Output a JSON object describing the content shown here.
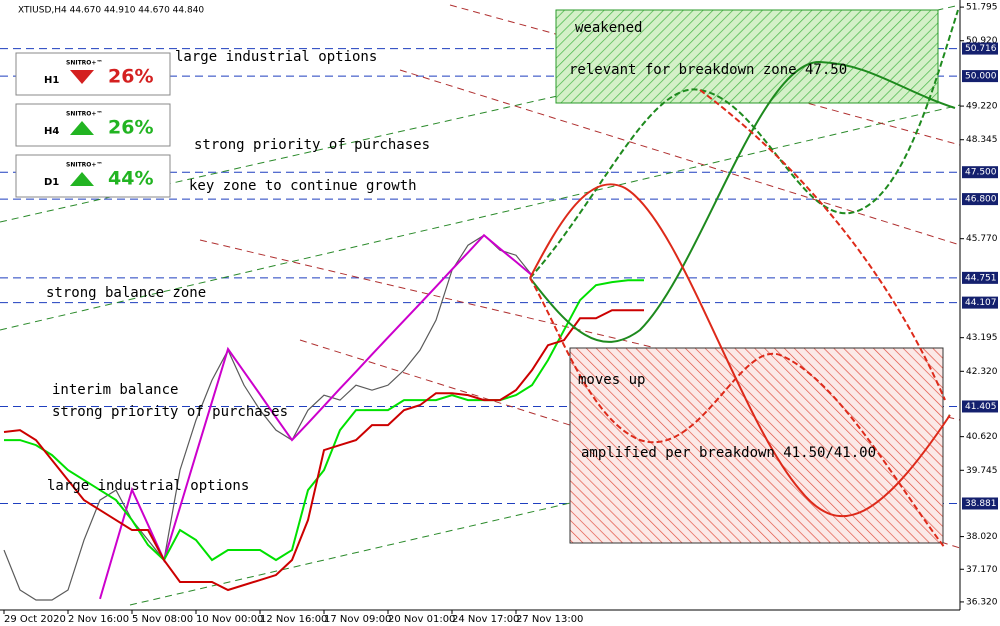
{
  "chart_data": {
    "type": "line",
    "title": "XTIUSD,H4  44.670 44.910 44.670 44.840",
    "categories": [
      "29 Oct 2020",
      null,
      null,
      null,
      "2 Nov 16:00",
      null,
      null,
      null,
      "5 Nov 08:00",
      null,
      null,
      null,
      "10 Nov 00:00",
      null,
      null,
      null,
      "12 Nov 16:00",
      null,
      null,
      null,
      "17 Nov 09:00",
      null,
      null,
      null,
      "20 Nov 01:00",
      null,
      null,
      null,
      "24 Nov 17:00",
      null,
      null,
      null,
      "27 Nov 13:00",
      null,
      null,
      null,
      null,
      null,
      null,
      null,
      null
    ],
    "series": [
      {
        "color": "#5a5a5a",
        "values": [
          37.67,
          36.63,
          36.37,
          36.37,
          36.63,
          37.93,
          38.97,
          39.23,
          38.45,
          37.93,
          37.41,
          39.75,
          41.05,
          42.09,
          42.87,
          41.96,
          41.31,
          40.79,
          40.53,
          41.31,
          41.7,
          41.57,
          41.96,
          41.83,
          41.96,
          42.35,
          42.87,
          43.65,
          44.95,
          45.6,
          45.86,
          45.47,
          45.34,
          44.82,
          null,
          null,
          null,
          null,
          null,
          null,
          null
        ]
      },
      {
        "color": "#cc00cc",
        "values": [
          null,
          null,
          null,
          null,
          null,
          null,
          36.4,
          37.82,
          39.24,
          38.33,
          37.41,
          38.78,
          40.16,
          41.53,
          42.9,
          42.31,
          41.72,
          41.12,
          40.53,
          40.97,
          41.42,
          41.87,
          42.31,
          42.76,
          43.2,
          43.64,
          44.08,
          44.52,
          44.97,
          45.41,
          45.86,
          45.51,
          45.17,
          44.82,
          null,
          null,
          null,
          null,
          null,
          null,
          null
        ]
      },
      {
        "color": "#00e000",
        "values": [
          40.53,
          40.53,
          40.4,
          40.14,
          39.75,
          39.49,
          39.23,
          38.97,
          38.45,
          37.8,
          37.41,
          38.19,
          37.93,
          37.41,
          37.67,
          37.67,
          37.67,
          37.41,
          37.67,
          39.23,
          39.75,
          40.79,
          41.31,
          41.31,
          41.31,
          41.57,
          41.57,
          41.57,
          41.7,
          41.57,
          41.57,
          41.57,
          41.7,
          41.96,
          42.61,
          43.39,
          44.17,
          44.56,
          44.64,
          44.69,
          44.69
        ]
      },
      {
        "color": "#cc0000",
        "values": [
          40.74,
          40.79,
          40.53,
          40.01,
          39.49,
          38.97,
          38.71,
          38.45,
          38.19,
          38.19,
          37.41,
          36.84,
          36.84,
          36.84,
          36.63,
          36.76,
          36.89,
          37.02,
          37.41,
          38.45,
          40.27,
          40.4,
          40.53,
          40.92,
          40.92,
          41.31,
          41.44,
          41.75,
          41.75,
          41.7,
          41.57,
          41.57,
          41.83,
          42.35,
          43.0,
          43.13,
          43.7,
          43.7,
          43.91,
          43.91,
          43.91
        ]
      }
    ],
    "ylim": [
      36.11,
      51.98
    ],
    "yticks": [
      51.795,
      {
        "value": 50.92,
        "label": "50.920"
      },
      {
        "value": 49.22,
        "label": "49.220"
      },
      48.345,
      {
        "value": 45.77,
        "label": "45.770"
      },
      43.195,
      {
        "value": 42.32,
        "label": "42.320"
      },
      {
        "value": 40.62,
        "label": "40.620"
      },
      39.745,
      {
        "value": 38.02,
        "label": "38.020"
      },
      {
        "value": 37.17,
        "label": "37.170"
      },
      {
        "value": 36.32,
        "label": "36.320"
      }
    ],
    "levels": [
      50.716,
      {
        "value": 50,
        "label": "50.000"
      },
      {
        "value": 47.5,
        "label": "47.500"
      },
      {
        "value": 46.8,
        "label": "46.800"
      },
      44.751,
      44.107,
      41.405,
      38.881
    ],
    "level_color": "#1f3fbf",
    "annotations": [
      "large industrial options",
      "strong priority of purchases",
      "key zone to continue growth",
      "strong balance zone",
      "interim balance",
      "strong priority of purchases",
      "large industrial options",
      "weakened",
      "relevant for breakdown zone 47.50",
      "moves up",
      "amplified per breakdown 41.50/41.00"
    ],
    "panels": [
      {
        "brand": "SNITRO+™",
        "timeframe": "H1",
        "label": "26%",
        "direction": "down"
      },
      {
        "brand": "SNITRO+™",
        "timeframe": "H4",
        "label": "26%",
        "direction": "up"
      },
      {
        "brand": "SNITRO+™",
        "timeframe": "D1",
        "label": "44%",
        "direction": "up"
      }
    ]
  }
}
